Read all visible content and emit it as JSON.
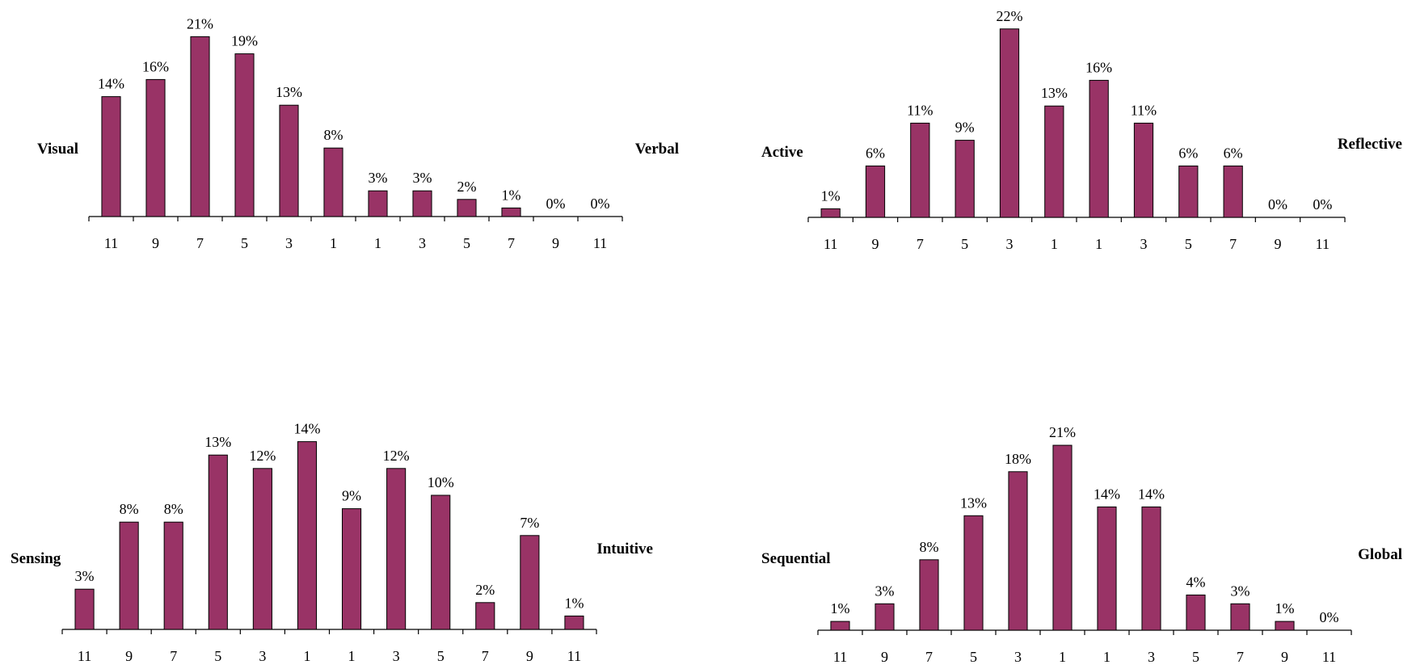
{
  "colors": {
    "bar": "#993366",
    "bar_stroke": "#000000",
    "axis": "#000000"
  },
  "chart_data": [
    {
      "type": "bar",
      "left_label": "Visual",
      "right_label": "Verbal",
      "categories": [
        "11",
        "9",
        "7",
        "5",
        "3",
        "1",
        "1",
        "3",
        "5",
        "7",
        "9",
        "11"
      ],
      "values": [
        14,
        16,
        21,
        19,
        13,
        8,
        3,
        3,
        2,
        1,
        0,
        0
      ],
      "value_labels": [
        "14%",
        "16%",
        "21%",
        "19%",
        "13%",
        "8%",
        "3%",
        "3%",
        "2%",
        "1%",
        "0%",
        "0%"
      ],
      "ylim": [
        0,
        22
      ],
      "grid": false
    },
    {
      "type": "bar",
      "left_label": "Active",
      "right_label": "Reflective",
      "categories": [
        "11",
        "9",
        "7",
        "5",
        "3",
        "1",
        "1",
        "3",
        "5",
        "7",
        "9",
        "11"
      ],
      "values": [
        1,
        6,
        11,
        9,
        22,
        13,
        16,
        11,
        6,
        6,
        0,
        0
      ],
      "value_labels": [
        "1%",
        "6%",
        "11%",
        "9%",
        "22%",
        "13%",
        "16%",
        "11%",
        "6%",
        "6%",
        "0%",
        "0%"
      ],
      "ylim": [
        0,
        22
      ],
      "grid": false
    },
    {
      "type": "bar",
      "left_label": "Sensing",
      "right_label": "Intuitive",
      "categories": [
        "11",
        "9",
        "7",
        "5",
        "3",
        "1",
        "1",
        "3",
        "5",
        "7",
        "9",
        "11"
      ],
      "values": [
        3,
        8,
        8,
        13,
        12,
        14,
        9,
        12,
        10,
        2,
        7,
        1
      ],
      "value_labels": [
        "3%",
        "8%",
        "8%",
        "13%",
        "12%",
        "14%",
        "9%",
        "12%",
        "10%",
        "2%",
        "7%",
        "1%"
      ],
      "ylim": [
        0,
        15
      ],
      "grid": false
    },
    {
      "type": "bar",
      "left_label": "Sequential",
      "right_label": "Global",
      "categories": [
        "11",
        "9",
        "7",
        "5",
        "3",
        "1",
        "1",
        "3",
        "5",
        "7",
        "9",
        "11"
      ],
      "values": [
        1,
        3,
        8,
        13,
        18,
        21,
        14,
        14,
        4,
        3,
        1,
        0
      ],
      "value_labels": [
        "1%",
        "3%",
        "8%",
        "13%",
        "18%",
        "21%",
        "14%",
        "14%",
        "4%",
        "3%",
        "1%",
        "0%"
      ],
      "ylim": [
        0,
        22
      ],
      "grid": false
    }
  ]
}
